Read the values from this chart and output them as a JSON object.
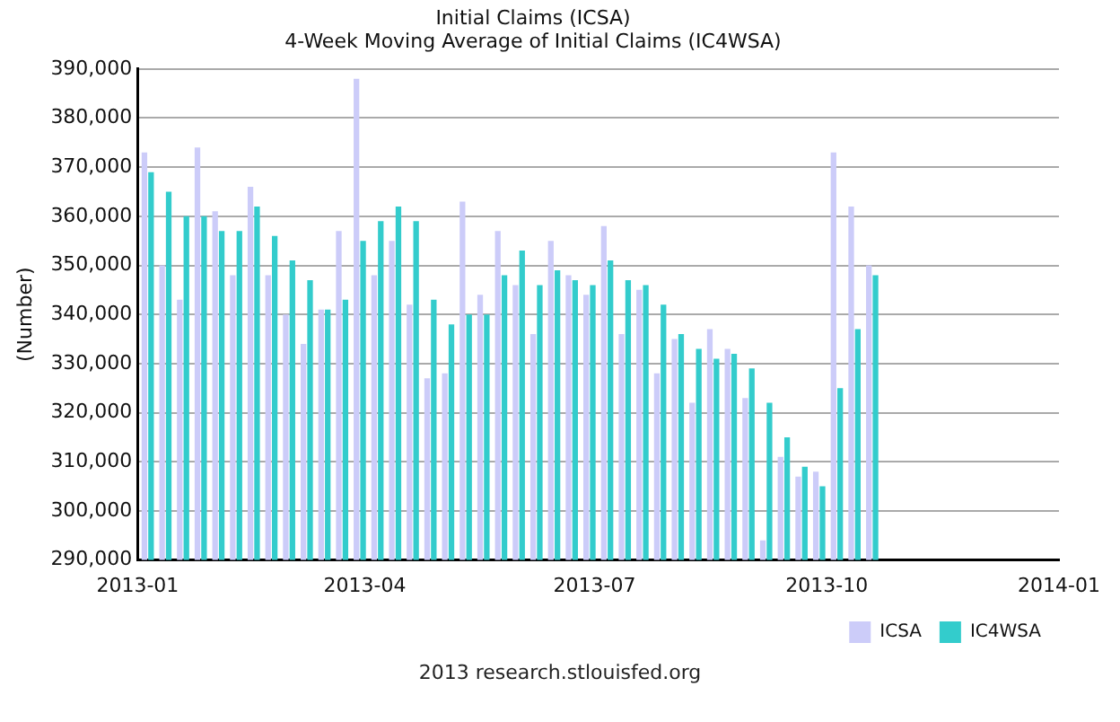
{
  "chart_data": {
    "type": "bar",
    "title": "Initial Claims (ICSA)",
    "subtitle": "4-Week Moving Average of Initial Claims (IC4WSA)",
    "ylabel": "(Number)",
    "x": [
      "2013-01-05",
      "2013-01-12",
      "2013-01-19",
      "2013-01-26",
      "2013-02-02",
      "2013-02-09",
      "2013-02-16",
      "2013-02-23",
      "2013-03-02",
      "2013-03-09",
      "2013-03-16",
      "2013-03-23",
      "2013-03-30",
      "2013-04-06",
      "2013-04-13",
      "2013-04-20",
      "2013-04-27",
      "2013-05-04",
      "2013-05-11",
      "2013-05-18",
      "2013-05-25",
      "2013-06-01",
      "2013-06-08",
      "2013-06-15",
      "2013-06-22",
      "2013-06-29",
      "2013-07-06",
      "2013-07-13",
      "2013-07-20",
      "2013-07-27",
      "2013-08-03",
      "2013-08-10",
      "2013-08-17",
      "2013-08-24",
      "2013-08-31",
      "2013-09-07",
      "2013-09-14",
      "2013-09-21",
      "2013-09-28",
      "2013-10-05",
      "2013-10-12",
      "2013-10-19"
    ],
    "series": [
      {
        "name": "ICSA",
        "color": "#ccccf9",
        "values": [
          373000,
          350000,
          343000,
          374000,
          361000,
          348000,
          366000,
          348000,
          340000,
          334000,
          341000,
          357000,
          388000,
          348000,
          355000,
          342000,
          327000,
          328000,
          363000,
          344000,
          357000,
          346000,
          336000,
          355000,
          348000,
          344000,
          358000,
          336000,
          345000,
          328000,
          335000,
          322000,
          337000,
          333000,
          323000,
          294000,
          311000,
          307000,
          308000,
          373000,
          362000,
          350000
        ]
      },
      {
        "name": "IC4WSA",
        "color": "#33cccc",
        "values": [
          369000,
          365000,
          360000,
          360000,
          357000,
          357000,
          362000,
          356000,
          351000,
          347000,
          341000,
          343000,
          355000,
          359000,
          362000,
          359000,
          343000,
          338000,
          340000,
          340000,
          348000,
          353000,
          346000,
          349000,
          347000,
          346000,
          351000,
          347000,
          346000,
          342000,
          336000,
          333000,
          331000,
          332000,
          329000,
          322000,
          315000,
          309000,
          305000,
          325000,
          337000,
          348000
        ]
      }
    ],
    "xlim": [
      "2013-01-01",
      "2014-01-01"
    ],
    "xticks": [
      "2013-01",
      "2013-04",
      "2013-07",
      "2013-10",
      "2014-01"
    ],
    "ylim": [
      290000,
      390000
    ],
    "yticks": [
      {
        "value": 290000,
        "label": "290,000"
      },
      {
        "value": 300000,
        "label": "300,000"
      },
      {
        "value": 310000,
        "label": "310,000"
      },
      {
        "value": 320000,
        "label": "320,000"
      },
      {
        "value": 330000,
        "label": "330,000"
      },
      {
        "value": 340000,
        "label": "340,000"
      },
      {
        "value": 350000,
        "label": "350,000"
      },
      {
        "value": 360000,
        "label": "360,000"
      },
      {
        "value": 370000,
        "label": "370,000"
      },
      {
        "value": 380000,
        "label": "380,000"
      },
      {
        "value": 390000,
        "label": "390,000"
      }
    ],
    "grid": "y",
    "legend": "bottom right",
    "annotations": [
      "2013 research.stlouisfed.org"
    ]
  }
}
